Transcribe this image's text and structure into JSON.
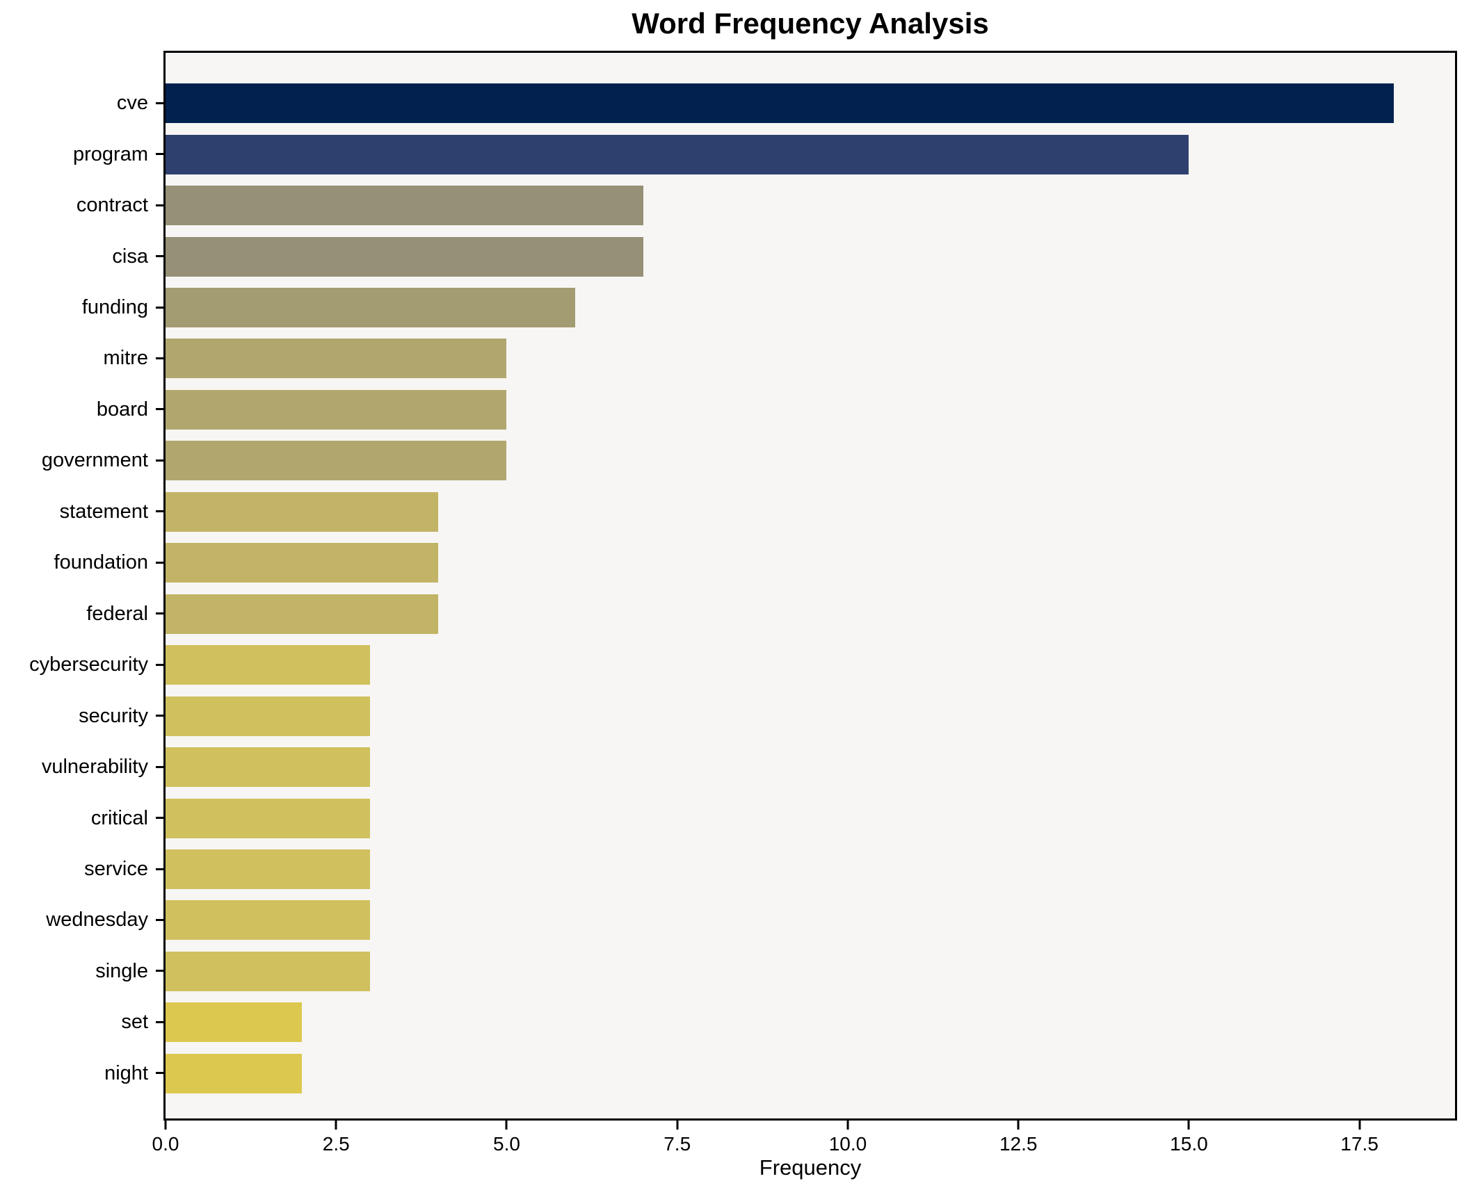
{
  "chart_data": {
    "type": "bar",
    "orientation": "horizontal",
    "title": "Word Frequency Analysis",
    "xlabel": "Frequency",
    "ylabel": "",
    "categories": [
      "cve",
      "program",
      "contract",
      "cisa",
      "funding",
      "mitre",
      "board",
      "government",
      "statement",
      "foundation",
      "federal",
      "cybersecurity",
      "security",
      "vulnerability",
      "critical",
      "service",
      "wednesday",
      "single",
      "set",
      "night"
    ],
    "values": [
      18,
      15,
      7,
      7,
      6,
      5,
      5,
      5,
      4,
      4,
      4,
      3,
      3,
      3,
      3,
      3,
      3,
      3,
      2,
      2
    ],
    "bar_colors": [
      "#02214f",
      "#2e406d",
      "#959076",
      "#959076",
      "#a39b71",
      "#b1a76e",
      "#b1a76e",
      "#b1a76e",
      "#c2b466",
      "#c2b466",
      "#c2b466",
      "#d0c05e",
      "#d0c05e",
      "#d0c05e",
      "#d0c05e",
      "#d0c05e",
      "#d0c05e",
      "#d0c05e",
      "#dcc84f",
      "#dcc84f"
    ],
    "x_ticks": [
      {
        "label": "0.0",
        "value": 0
      },
      {
        "label": "2.5",
        "value": 2.5
      },
      {
        "label": "5.0",
        "value": 5
      },
      {
        "label": "7.5",
        "value": 7.5
      },
      {
        "label": "10.0",
        "value": 10
      },
      {
        "label": "12.5",
        "value": 12.5
      },
      {
        "label": "15.0",
        "value": 15
      },
      {
        "label": "17.5",
        "value": 17.5
      }
    ],
    "xlim": [
      0,
      18.9
    ],
    "grid": false,
    "legend": null,
    "plot_background": "#f7f6f4",
    "figure_background": "#ffffff",
    "spine_color": "#000000"
  }
}
